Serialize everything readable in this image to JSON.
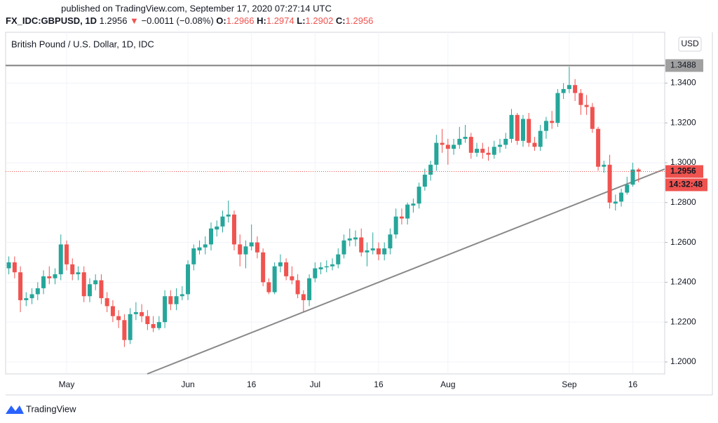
{
  "chart_data": {
    "type": "candlestick",
    "header": {
      "published": "published on TradingView.com, September 17, 2020 07:27:14 UTC",
      "symbol": "FX_IDC:GBPUSD, 1D",
      "change_arrow": "▼",
      "change": "−0.0011 (−0.08%)",
      "o_label": "O:",
      "h_label": "H:",
      "l_label": "L:",
      "c_label": "C:"
    },
    "title": "British Pound / U.S. Dollar, 1D, IDC",
    "currency": "USD",
    "countdown": "14:32:48",
    "brand": "TradingView",
    "categories": [
      null,
      null,
      null,
      null,
      null,
      null,
      null,
      null,
      null,
      null,
      "May",
      null,
      null,
      null,
      null,
      null,
      null,
      null,
      null,
      null,
      null,
      null,
      null,
      null,
      null,
      null,
      null,
      null,
      null,
      null,
      null,
      "Jun",
      null,
      null,
      null,
      null,
      null,
      null,
      null,
      null,
      null,
      null,
      "16",
      null,
      null,
      null,
      null,
      null,
      null,
      null,
      null,
      null,
      null,
      "Jul",
      null,
      null,
      null,
      null,
      null,
      null,
      null,
      null,
      null,
      null,
      "16",
      null,
      null,
      null,
      null,
      null,
      null,
      null,
      null,
      null,
      null,
      null,
      "Aug",
      null,
      null,
      null,
      null,
      null,
      null,
      null,
      null,
      null,
      null,
      null,
      null,
      null,
      null,
      null,
      null,
      null,
      null,
      null,
      null,
      "Sep",
      null,
      null,
      null,
      null,
      null,
      null,
      null,
      null,
      null,
      null,
      "16",
      null
    ],
    "ohlc": {
      "open": [
        1.247,
        1.25,
        1.245,
        1.231,
        1.232,
        1.234,
        1.237,
        1.243,
        1.242,
        1.244,
        1.259,
        1.249,
        1.244,
        1.245,
        1.233,
        1.239,
        1.241,
        1.232,
        1.228,
        1.223,
        1.221,
        1.211,
        1.224,
        1.225,
        1.223,
        1.219,
        1.217,
        1.22,
        1.233,
        1.229,
        1.233,
        1.234,
        1.249,
        1.256,
        1.2575,
        1.259,
        1.2665,
        1.268,
        1.273,
        1.274,
        1.259,
        1.254,
        1.258,
        1.26,
        1.255,
        1.24,
        1.235,
        1.248,
        1.25,
        1.243,
        1.241,
        1.234,
        1.231,
        1.242,
        1.2465,
        1.2475,
        1.248,
        1.249,
        1.254,
        1.261,
        1.2615,
        1.2625,
        1.255,
        1.256,
        1.257,
        1.254,
        1.257,
        1.264,
        1.273,
        1.272,
        1.2785,
        1.2795,
        1.288,
        1.294,
        1.299,
        1.31,
        1.309,
        1.307,
        1.309,
        1.312,
        1.313,
        1.305,
        1.307,
        1.305,
        1.304,
        1.308,
        1.309,
        1.312,
        1.324,
        1.311,
        1.322,
        1.31,
        1.308,
        1.316,
        1.321,
        1.32,
        1.335,
        1.337,
        1.339,
        1.335,
        1.329,
        1.328,
        1.317,
        1.298,
        1.299,
        1.2795,
        1.2805,
        1.285,
        1.289,
        1.2966
      ],
      "high": [
        1.253,
        1.253,
        1.248,
        1.235,
        1.237,
        1.24,
        1.246,
        1.248,
        1.247,
        1.264,
        1.261,
        1.252,
        1.248,
        1.248,
        1.242,
        1.244,
        1.244,
        1.235,
        1.231,
        1.226,
        1.224,
        1.227,
        1.23,
        1.229,
        1.226,
        1.223,
        1.223,
        1.236,
        1.236,
        1.237,
        1.238,
        1.251,
        1.259,
        1.261,
        1.263,
        1.27,
        1.271,
        1.276,
        1.281,
        1.276,
        1.264,
        1.261,
        1.269,
        1.263,
        1.257,
        1.242,
        1.25,
        1.254,
        1.252,
        1.248,
        1.244,
        1.236,
        1.244,
        1.25,
        1.25,
        1.251,
        1.252,
        1.257,
        1.264,
        1.267,
        1.266,
        1.267,
        1.26,
        1.265,
        1.26,
        1.26,
        1.267,
        1.277,
        1.277,
        1.28,
        1.282,
        1.29,
        1.297,
        1.301,
        1.314,
        1.317,
        1.312,
        1.312,
        1.318,
        1.319,
        1.315,
        1.31,
        1.31,
        1.308,
        1.311,
        1.312,
        1.315,
        1.327,
        1.325,
        1.324,
        1.325,
        1.313,
        1.319,
        1.323,
        1.326,
        1.337,
        1.34,
        1.3482,
        1.342,
        1.337,
        1.334,
        1.33,
        1.318,
        1.301,
        1.304,
        1.284,
        1.287,
        1.293,
        1.3,
        1.2974
      ],
      "low": [
        1.244,
        1.242,
        1.225,
        1.228,
        1.229,
        1.231,
        1.234,
        1.239,
        1.239,
        1.241,
        1.246,
        1.241,
        1.241,
        1.23,
        1.23,
        1.236,
        1.229,
        1.225,
        1.22,
        1.217,
        1.2075,
        1.209,
        1.221,
        1.22,
        1.216,
        1.215,
        1.216,
        1.217,
        1.226,
        1.226,
        1.231,
        1.231,
        1.246,
        1.254,
        1.254,
        1.256,
        1.263,
        1.265,
        1.27,
        1.256,
        1.248,
        1.247,
        1.256,
        1.252,
        1.238,
        1.234,
        1.234,
        1.245,
        1.241,
        1.239,
        1.232,
        1.225,
        1.228,
        1.24,
        1.244,
        1.245,
        1.246,
        1.247,
        1.252,
        1.258,
        1.258,
        1.253,
        1.248,
        1.254,
        1.251,
        1.251,
        1.254,
        1.262,
        1.269,
        1.269,
        1.275,
        1.277,
        1.286,
        1.291,
        1.296,
        1.305,
        1.299,
        1.304,
        1.307,
        1.31,
        1.302,
        1.303,
        1.302,
        1.301,
        1.302,
        1.305,
        1.307,
        1.31,
        1.309,
        1.308,
        1.308,
        1.306,
        1.306,
        1.312,
        1.317,
        1.318,
        1.332,
        1.335,
        1.331,
        1.324,
        1.324,
        1.315,
        1.296,
        1.295,
        1.277,
        1.276,
        1.278,
        1.284,
        1.288,
        1.2902
      ],
      "close": [
        1.25,
        1.245,
        1.231,
        1.232,
        1.234,
        1.237,
        1.243,
        1.242,
        1.244,
        1.259,
        1.249,
        1.244,
        1.245,
        1.233,
        1.239,
        1.241,
        1.232,
        1.228,
        1.223,
        1.221,
        1.211,
        1.224,
        1.225,
        1.223,
        1.219,
        1.217,
        1.22,
        1.233,
        1.229,
        1.233,
        1.234,
        1.249,
        1.257,
        1.2575,
        1.259,
        1.267,
        1.268,
        1.273,
        1.274,
        1.259,
        1.254,
        1.258,
        1.26,
        1.255,
        1.24,
        1.235,
        1.248,
        1.25,
        1.243,
        1.241,
        1.234,
        1.231,
        1.242,
        1.247,
        1.2475,
        1.248,
        1.249,
        1.254,
        1.261,
        1.262,
        1.2625,
        1.255,
        1.256,
        1.257,
        1.254,
        1.257,
        1.264,
        1.273,
        1.272,
        1.279,
        1.2795,
        1.288,
        1.294,
        1.299,
        1.31,
        1.309,
        1.307,
        1.309,
        1.312,
        1.313,
        1.305,
        1.307,
        1.305,
        1.304,
        1.308,
        1.309,
        1.312,
        1.324,
        1.311,
        1.322,
        1.31,
        1.308,
        1.316,
        1.321,
        1.32,
        1.335,
        1.337,
        1.339,
        1.335,
        1.329,
        1.328,
        1.317,
        1.298,
        1.299,
        1.28,
        1.2805,
        1.285,
        1.289,
        1.2966,
        1.2956
      ]
    },
    "up_color": "#26a69a",
    "down_color": "#ef5350",
    "horizontal_line": 1.3488,
    "ylim": [
      1.194,
      1.3655
    ],
    "yticks": [
      {
        "value": 1.2,
        "label": "1.2000"
      },
      {
        "value": 1.22,
        "label": "1.2200"
      },
      {
        "value": 1.24,
        "label": "1.2400"
      },
      {
        "value": 1.26,
        "label": "1.2600"
      },
      {
        "value": 1.28,
        "label": "1.2800"
      },
      {
        "value": 1.3,
        "label": "1.3000"
      },
      {
        "value": 1.32,
        "label": "1.3200"
      },
      {
        "value": 1.34,
        "label": "1.3400"
      }
    ],
    "grid": true
  }
}
